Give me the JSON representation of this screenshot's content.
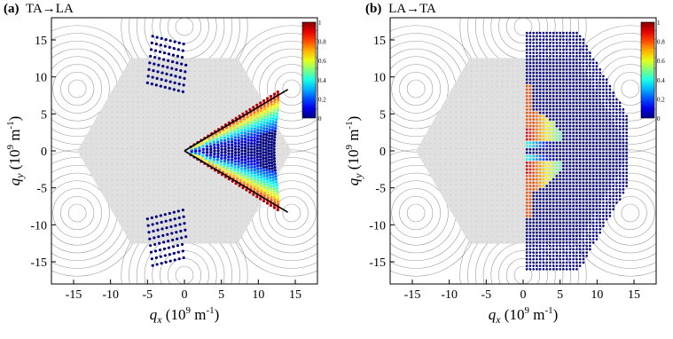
{
  "figure": {
    "colors": {
      "hexagon_fill": "#e0e0e0",
      "contour_stroke": "#9a9a9a",
      "grid_dot": "#a9a9a9",
      "boundary_line": "#000000"
    },
    "colormap": "jet"
  },
  "chart_data": [
    {
      "type": "scatter",
      "panel_label": "(a)",
      "title": "TA→LA",
      "xlabel_var": "q",
      "xlabel_sub": "x",
      "xlabel_unit_pre": " (10",
      "xlabel_unit_exp": "9",
      "xlabel_unit_post": " m",
      "xlabel_unit_exp2": "-1",
      "xlabel_unit_close": ")",
      "ylabel_var": "q",
      "ylabel_sub": "y",
      "ylabel_unit_pre": " (10",
      "ylabel_unit_exp": "9",
      "ylabel_unit_post": " m",
      "ylabel_unit_exp2": "-1",
      "ylabel_unit_close": ")",
      "xlim": [
        -18,
        18
      ],
      "ylim": [
        -18,
        18
      ],
      "x_ticks": [
        "-15",
        "-10",
        "-5",
        "0",
        "5",
        "10",
        "15"
      ],
      "y_ticks": [
        "15",
        "10",
        "5",
        "0",
        "-5",
        "-10",
        "-15"
      ],
      "colorbar_ticks": [
        "1",
        "0.8",
        "0.6",
        "0.4",
        "0.2",
        "0"
      ],
      "colorbar_range": [
        0,
        1
      ],
      "brillouin_zone_hexagon_vertices": [
        [
          -14.5,
          0
        ],
        [
          -7.25,
          12.56
        ],
        [
          7.25,
          12.56
        ],
        [
          14.5,
          0
        ],
        [
          7.25,
          -12.56
        ],
        [
          -14.5,
          0
        ]
      ],
      "boundary_lines": [
        [
          [
            0,
            0
          ],
          [
            14,
            8.3
          ]
        ],
        [
          [
            0,
            0
          ],
          [
            14,
            -8.3
          ]
        ]
      ],
      "series": [
        {
          "description_kind": "allowed-transition-sector",
          "wedge": {
            "origin": [
              0,
              0
            ],
            "angle_deg": [
              -31,
              31
            ],
            "k_range": [
              0.5,
              15
            ]
          },
          "value_profile": "high near wedge edges, low toward centre (jet colormap)"
        },
        {
          "description_kind": "upper-arcs",
          "region_x": [
            -5,
            0
          ],
          "region_y": [
            9,
            16
          ],
          "value": 0.0
        },
        {
          "description_kind": "lower-arcs",
          "region_x": [
            -5,
            0
          ],
          "region_y": [
            -16,
            -9
          ],
          "value": 0.0
        }
      ]
    },
    {
      "type": "scatter",
      "panel_label": "(b)",
      "title": "LA→TA",
      "xlabel_var": "q",
      "xlabel_sub": "x",
      "xlabel_unit_pre": " (10",
      "xlabel_unit_exp": "9",
      "xlabel_unit_post": " m",
      "xlabel_unit_exp2": "-1",
      "xlabel_unit_close": ")",
      "ylabel_var": "q",
      "ylabel_sub": "y",
      "ylabel_unit_pre": " (10",
      "ylabel_unit_exp": "9",
      "ylabel_unit_post": " m",
      "ylabel_unit_exp2": "-1",
      "ylabel_unit_close": ")",
      "xlim": [
        -18,
        18
      ],
      "ylim": [
        -18,
        18
      ],
      "x_ticks": [
        "-15",
        "-10",
        "-5",
        "0",
        "5",
        "10",
        "15"
      ],
      "y_ticks": [
        "15",
        "10",
        "5",
        "0",
        "-5",
        "-10",
        "-15"
      ],
      "colorbar_ticks": [
        "1",
        "0.8",
        "0.6",
        "0.4",
        "0.2",
        "0"
      ],
      "colorbar_range": [
        0,
        1
      ],
      "brillouin_zone_hexagon_vertices": [
        [
          -14.5,
          0
        ],
        [
          -7.25,
          12.56
        ],
        [
          7.25,
          12.56
        ],
        [
          14.5,
          0
        ],
        [
          7.25,
          -12.56
        ],
        [
          -14.5,
          0
        ]
      ],
      "series": [
        {
          "description_kind": "right-half-zone",
          "region_x": [
            0.3,
            15
          ],
          "value_profile": "red at x≈0-5 lobes, blue elsewhere (jet colormap)"
        }
      ]
    }
  ]
}
